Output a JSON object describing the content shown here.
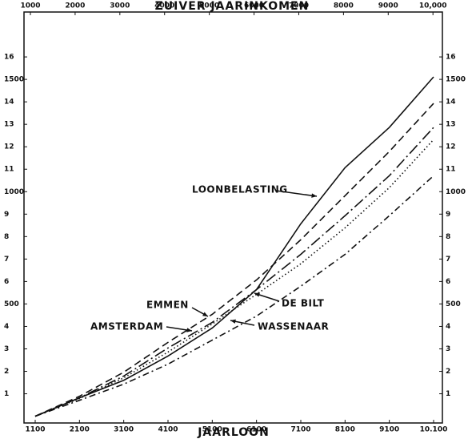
{
  "chart_data": {
    "type": "line",
    "x_label": "JAARLOON",
    "x2_label": "ZUIVER JAARINKOMEN",
    "x": [
      1100,
      2100,
      3100,
      4100,
      5100,
      6100,
      7100,
      8100,
      9100,
      10100
    ],
    "xlim": [
      847,
      10299
    ],
    "xticks": [
      1100,
      2100,
      3100,
      4100,
      5100,
      6100,
      7100,
      8100,
      9100,
      {
        "value": 10100,
        "label": "10.100"
      }
    ],
    "x2lim": [
      857,
      10211
    ],
    "x2ticks": [
      1000,
      2000,
      3000,
      4000,
      5000,
      6000,
      7000,
      8000,
      9000,
      {
        "value": 10000,
        "label": "10,000"
      }
    ],
    "ylim": [
      -30,
      1800
    ],
    "yticks": [
      {
        "value": 100,
        "label": "1"
      },
      {
        "value": 200,
        "label": "2"
      },
      {
        "value": 300,
        "label": "3"
      },
      {
        "value": 400,
        "label": "4"
      },
      500,
      {
        "value": 600,
        "label": "6"
      },
      {
        "value": 700,
        "label": "7"
      },
      {
        "value": 800,
        "label": "8"
      },
      {
        "value": 900,
        "label": "9"
      },
      1000,
      {
        "value": 1100,
        "label": "11"
      },
      {
        "value": 1200,
        "label": "12"
      },
      {
        "value": 1300,
        "label": "13"
      },
      {
        "value": 1400,
        "label": "14"
      },
      1500,
      {
        "value": 1600,
        "label": "16"
      }
    ],
    "series": [
      {
        "name": "LOONBELASTING",
        "color": "#111111",
        "dash": "solid",
        "values": [
          0,
          82,
          160,
          268,
          393,
          564,
          857,
          1107,
          1286,
          1511
        ]
      },
      {
        "name": "EMMEN",
        "color": "#111111",
        "dash": "dashed",
        "values": [
          0,
          89,
          196,
          329,
          454,
          607,
          786,
          982,
          1179,
          1393
        ]
      },
      {
        "name": "AMSTERDAM",
        "color": "#111111",
        "dash": "long-dash-dot",
        "values": [
          0,
          82,
          179,
          304,
          418,
          564,
          721,
          893,
          1071,
          1286
        ]
      },
      {
        "name": "DE BILT",
        "color": "#111111",
        "dash": "dotted",
        "values": [
          0,
          79,
          171,
          286,
          411,
          543,
          679,
          839,
          1018,
          1232
        ]
      },
      {
        "name": "WASSENAAR",
        "color": "#111111",
        "dash": "dash-dot",
        "values": [
          0,
          71,
          143,
          232,
          339,
          446,
          579,
          721,
          893,
          1071
        ]
      }
    ]
  }
}
